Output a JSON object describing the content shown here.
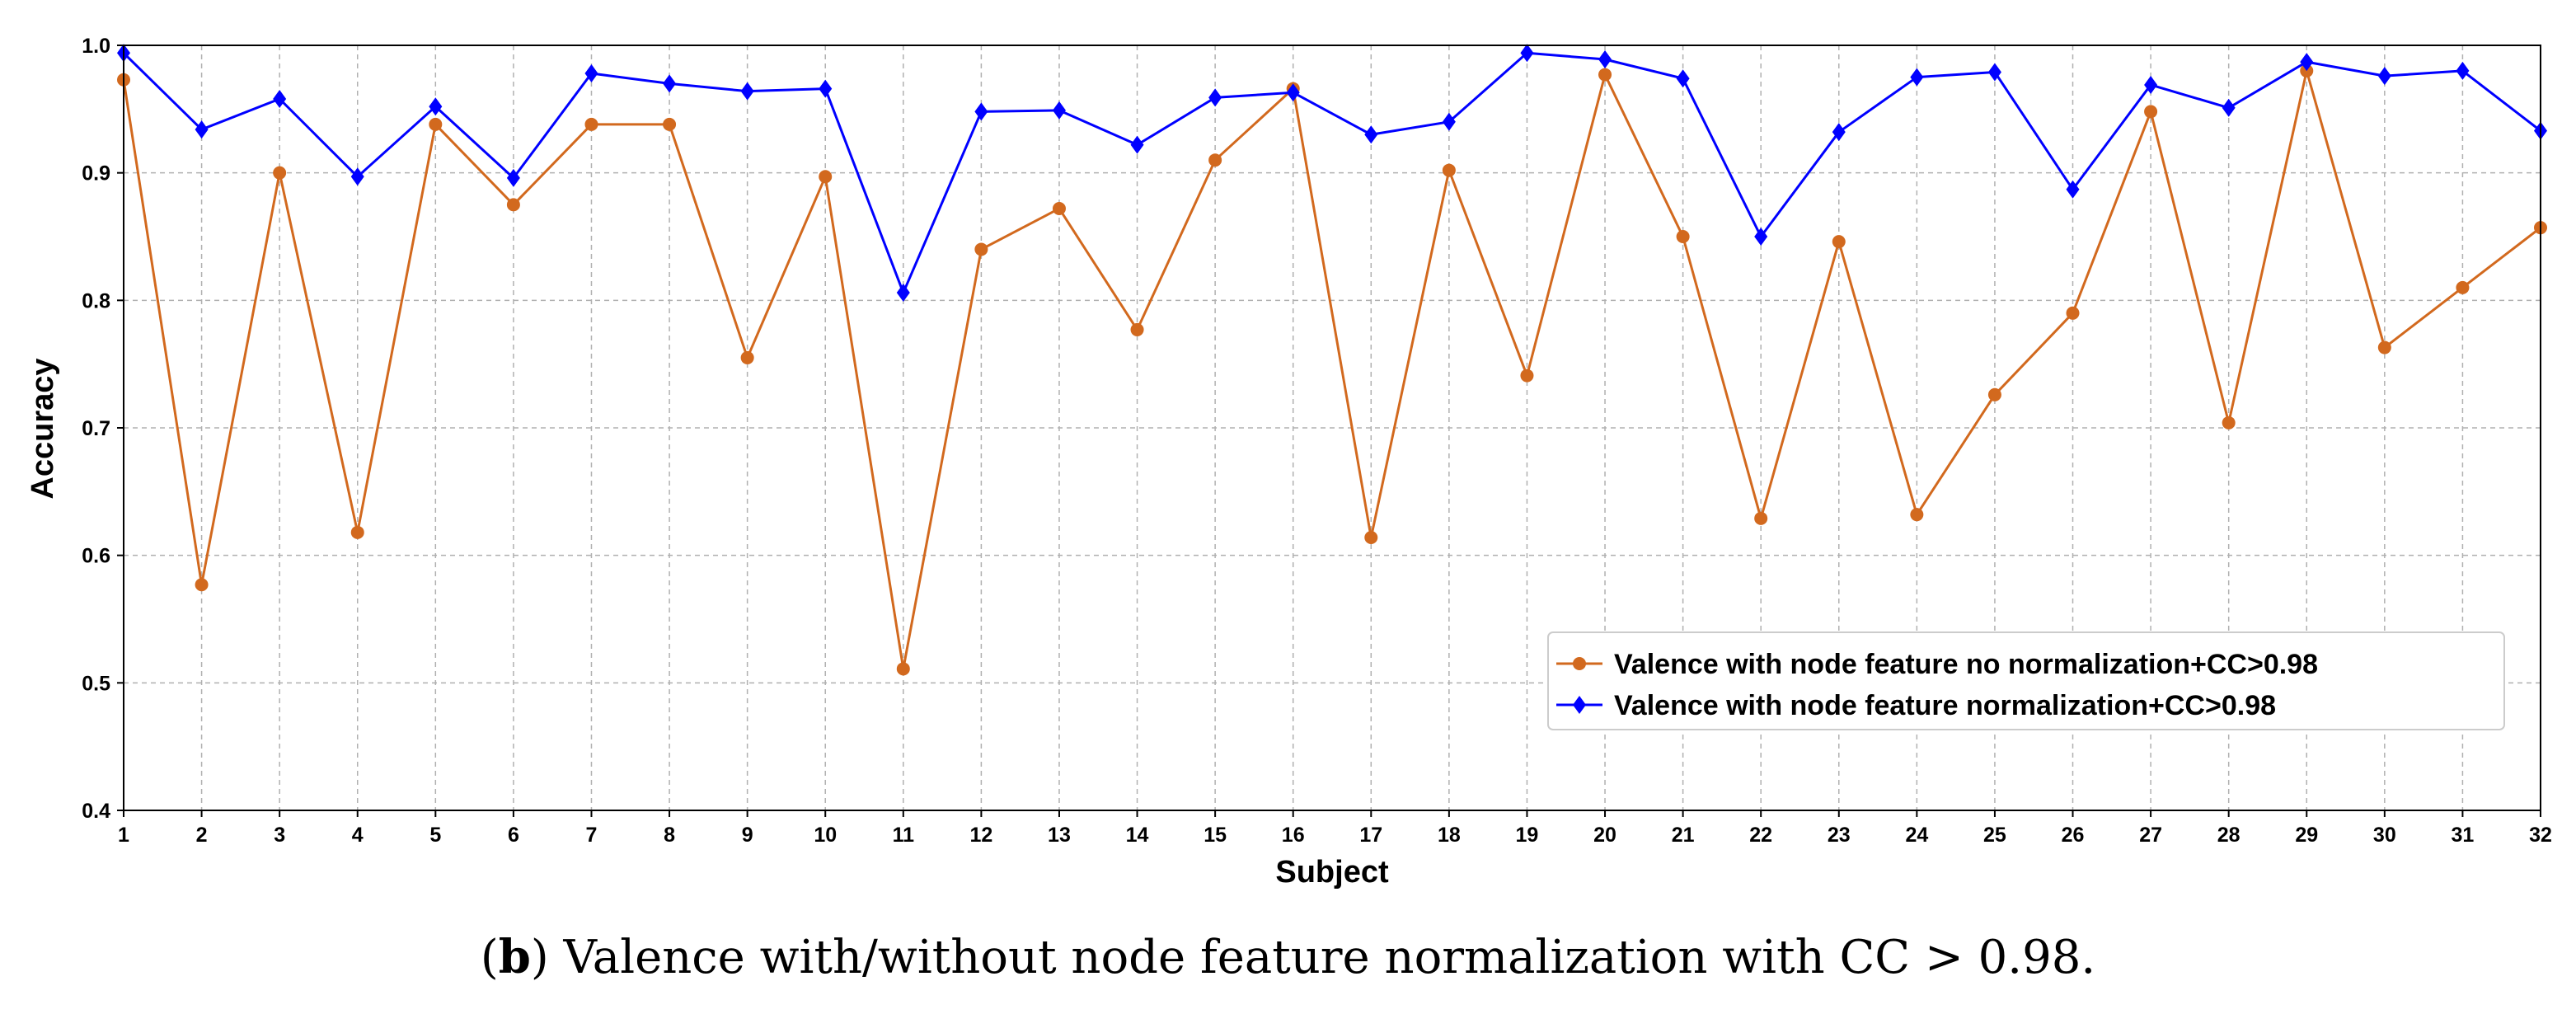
{
  "chart_data": {
    "type": "line",
    "title": "",
    "xlabel": "Subject",
    "ylabel": "Accuracy",
    "xlim": [
      1,
      32
    ],
    "ylim": [
      0.4,
      1.0
    ],
    "grid": true,
    "legend_position": "lower-right",
    "x": [
      1,
      2,
      3,
      4,
      5,
      6,
      7,
      8,
      9,
      10,
      11,
      12,
      13,
      14,
      15,
      16,
      17,
      18,
      19,
      20,
      21,
      22,
      23,
      24,
      25,
      26,
      27,
      28,
      29,
      30,
      31,
      32
    ],
    "x_ticks": [
      "1",
      "2",
      "3",
      "4",
      "5",
      "6",
      "7",
      "8",
      "9",
      "10",
      "11",
      "12",
      "13",
      "14",
      "15",
      "16",
      "17",
      "18",
      "19",
      "20",
      "21",
      "22",
      "23",
      "24",
      "25",
      "26",
      "27",
      "28",
      "29",
      "30",
      "31",
      "32"
    ],
    "y_ticks": [
      "0.4",
      "0.5",
      "0.6",
      "0.7",
      "0.8",
      "0.9",
      "1.0"
    ],
    "series": [
      {
        "name": "Valence with node feature no normalization+CC>0.98",
        "color": "#d2691e",
        "marker": "circle",
        "values": [
          0.973,
          0.577,
          0.9,
          0.618,
          0.938,
          0.875,
          0.938,
          0.938,
          0.755,
          0.897,
          0.511,
          0.84,
          0.872,
          0.777,
          0.91,
          0.966,
          0.614,
          0.902,
          0.741,
          0.977,
          0.85,
          0.629,
          0.846,
          0.632,
          0.726,
          0.79,
          0.948,
          0.704,
          0.98,
          0.763,
          0.81,
          0.857
        ]
      },
      {
        "name": "Valence with node feature normalization+CC>0.98",
        "color": "#0000ff",
        "marker": "diamond",
        "values": [
          0.994,
          0.934,
          0.958,
          0.897,
          0.952,
          0.896,
          0.978,
          0.97,
          0.964,
          0.966,
          0.806,
          0.948,
          0.949,
          0.922,
          0.959,
          0.963,
          0.93,
          0.94,
          0.994,
          0.989,
          0.974,
          0.85,
          0.932,
          0.975,
          0.979,
          0.887,
          0.969,
          0.951,
          0.987,
          0.976,
          0.98,
          0.933
        ]
      }
    ]
  },
  "caption": {
    "label": "b",
    "open": "(",
    "close": ")",
    "text": " Valence with/without node feature normalization with CC > 0.98."
  }
}
